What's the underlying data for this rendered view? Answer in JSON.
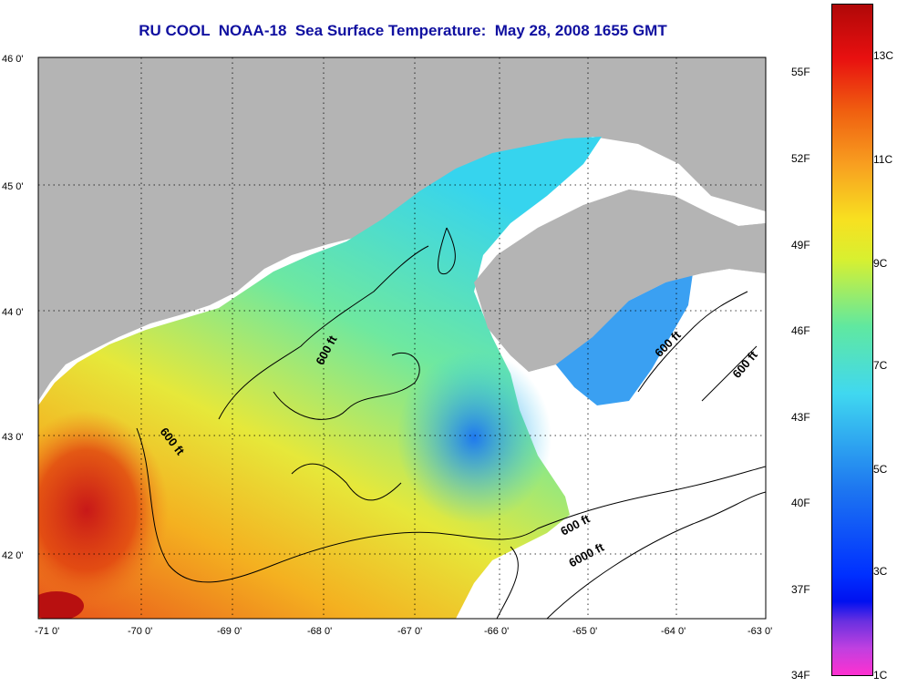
{
  "title": "RU COOL  NOAA-18  Sea Surface Temperature:  May 28, 2008 1655 GMT",
  "lat_labels": [
    "46 0'",
    "45 0'",
    "44 0'",
    "43 0'",
    "42 0'"
  ],
  "lon_labels": [
    "-71 0'",
    "-70 0'",
    "-69 0'",
    "-68 0'",
    "-67 0'",
    "-66 0'",
    "-65 0'",
    "-64 0'",
    "-63 0'"
  ],
  "contour_labels": [
    "600 ft",
    "600 ft",
    "600 ft",
    "600 ft",
    "600 ft",
    "6000 ft"
  ],
  "colorbar": {
    "fahrenheit": [
      "55F",
      "52F",
      "49F",
      "46F",
      "43F",
      "40F",
      "37F",
      "34F"
    ],
    "celsius": [
      "13C",
      "11C",
      "9C",
      "7C",
      "5C",
      "3C",
      "1C"
    ]
  },
  "colors": {
    "land": "#b4b4b4",
    "no_data": "#ffffff",
    "title": "#1010a0"
  }
}
